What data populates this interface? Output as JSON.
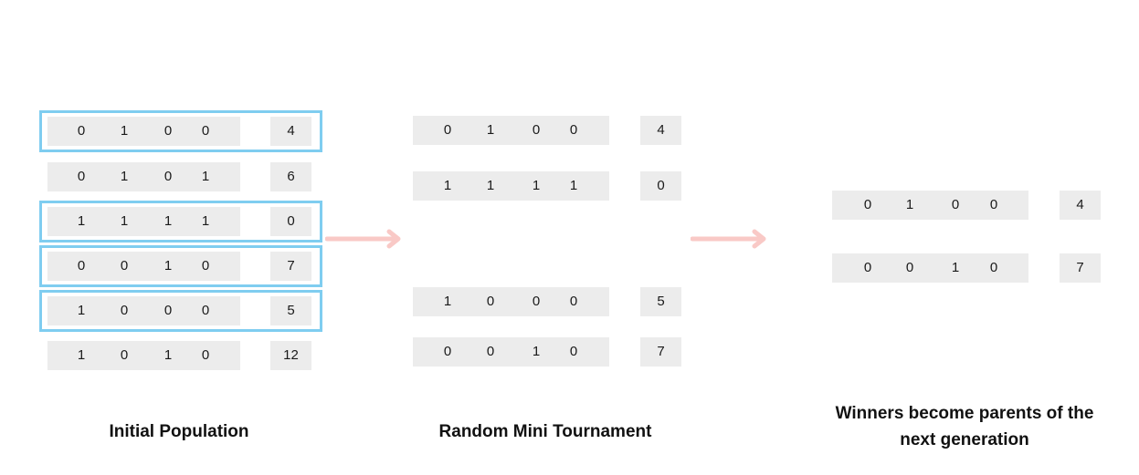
{
  "initial_population": {
    "label": "Initial Population",
    "rows": [
      {
        "genes": [
          "0",
          "1",
          "0",
          "0"
        ],
        "fitness": "4",
        "selected": true
      },
      {
        "genes": [
          "0",
          "1",
          "0",
          "1"
        ],
        "fitness": "6",
        "selected": false
      },
      {
        "genes": [
          "1",
          "1",
          "1",
          "1"
        ],
        "fitness": "0",
        "selected": true
      },
      {
        "genes": [
          "0",
          "0",
          "1",
          "0"
        ],
        "fitness": "7",
        "selected": true
      },
      {
        "genes": [
          "1",
          "0",
          "0",
          "0"
        ],
        "fitness": "5",
        "selected": true
      },
      {
        "genes": [
          "1",
          "0",
          "1",
          "0"
        ],
        "fitness": "12",
        "selected": false
      }
    ]
  },
  "tournament": {
    "label": "Random Mini Tournament",
    "rows": [
      {
        "genes": [
          "0",
          "1",
          "0",
          "0"
        ],
        "fitness": "4"
      },
      {
        "genes": [
          "1",
          "1",
          "1",
          "1"
        ],
        "fitness": "0"
      },
      {
        "genes": [
          "1",
          "0",
          "0",
          "0"
        ],
        "fitness": "5"
      },
      {
        "genes": [
          "0",
          "0",
          "1",
          "0"
        ],
        "fitness": "7"
      }
    ]
  },
  "winners": {
    "label_line1": "Winners become parents of the",
    "label_line2": "next generation",
    "rows": [
      {
        "genes": [
          "0",
          "1",
          "0",
          "0"
        ],
        "fitness": "4"
      },
      {
        "genes": [
          "0",
          "0",
          "1",
          "0"
        ],
        "fitness": "7"
      }
    ]
  },
  "colors": {
    "cell": "#ececec",
    "selection_border": "#7fcdf0",
    "arrow": "#f9c9c6"
  }
}
